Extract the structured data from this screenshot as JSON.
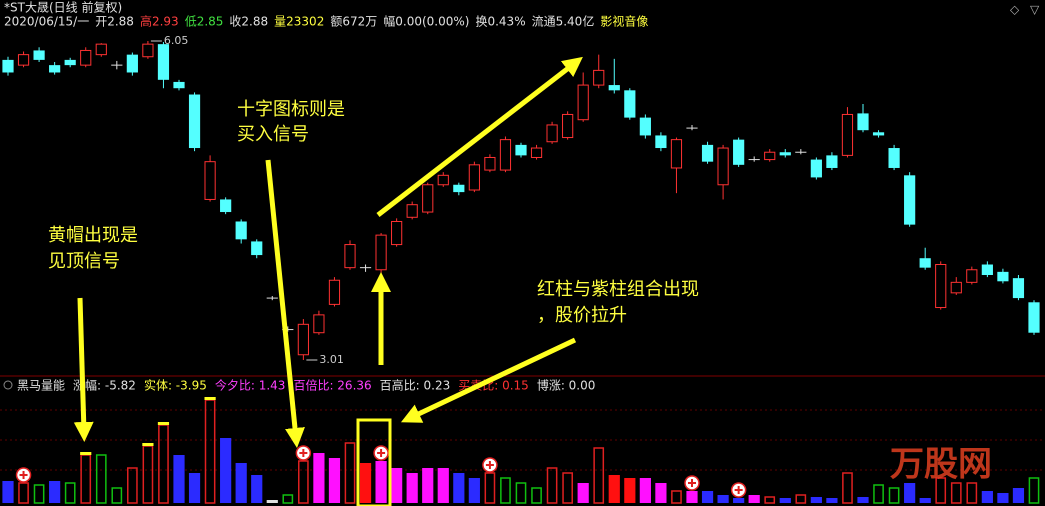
{
  "chart_data": {
    "type": "candlestick",
    "title": "*ST大晟(日线 前复权)",
    "header": [
      {
        "text": "2020/06/15/一",
        "color": "#e0e0e0"
      },
      {
        "text": "开2.88",
        "color": "#e0e0e0"
      },
      {
        "text": "高2.93",
        "color": "#ff4040"
      },
      {
        "text": "低2.85",
        "color": "#40e040"
      },
      {
        "text": "收2.88",
        "color": "#e0e0e0"
      },
      {
        "text": "量23302",
        "color": "#ffff40"
      },
      {
        "text": "额672万",
        "color": "#e0e0e0"
      },
      {
        "text": "幅0.00(0.00%)",
        "color": "#e0e0e0"
      },
      {
        "text": "换0.43%",
        "color": "#e0e0e0"
      },
      {
        "text": "流通5.40亿",
        "color": "#e0e0e0"
      },
      {
        "text": "影视音像",
        "color": "#ffff40"
      }
    ],
    "high_label": 6.05,
    "low_label": 3.01,
    "up_color": "#ff3232",
    "down_color": "#54ffff",
    "flat_color": "#e0e0e0",
    "ohlc": [
      [
        5.87,
        5.75,
        5.9,
        5.72
      ],
      [
        5.82,
        5.92,
        5.95,
        5.8
      ],
      [
        5.96,
        5.87,
        5.99,
        5.85
      ],
      [
        5.82,
        5.75,
        5.85,
        5.73
      ],
      [
        5.87,
        5.82,
        5.89,
        5.8
      ],
      [
        5.82,
        5.96,
        5.99,
        5.8
      ],
      [
        5.92,
        6.02,
        6.03,
        5.9
      ],
      [
        5.82,
        5.82,
        5.86,
        5.78
      ],
      [
        5.92,
        5.75,
        5.94,
        5.72
      ],
      [
        5.9,
        6.02,
        6.05,
        5.88
      ],
      [
        6.02,
        5.68,
        6.04,
        5.6
      ],
      [
        5.66,
        5.6,
        5.68,
        5.58
      ],
      [
        5.54,
        5.03,
        5.56,
        5.0
      ],
      [
        4.54,
        4.9,
        4.96,
        4.52
      ],
      [
        4.54,
        4.42,
        4.56,
        4.4
      ],
      [
        4.33,
        4.16,
        4.35,
        4.12
      ],
      [
        4.14,
        4.01,
        4.16,
        3.98
      ],
      [
        3.6,
        3.6,
        3.62,
        3.58
      ],
      [
        3.3,
        3.3,
        3.33,
        3.28
      ],
      [
        3.06,
        3.35,
        3.4,
        3.01
      ],
      [
        3.27,
        3.44,
        3.48,
        3.25
      ],
      [
        3.54,
        3.77,
        3.8,
        3.52
      ],
      [
        3.89,
        4.11,
        4.15,
        3.87
      ],
      [
        3.89,
        3.89,
        3.92,
        3.85
      ],
      [
        3.87,
        4.2,
        4.22,
        3.82
      ],
      [
        4.11,
        4.33,
        4.36,
        4.09
      ],
      [
        4.37,
        4.49,
        4.52,
        4.35
      ],
      [
        4.42,
        4.68,
        4.7,
        4.4
      ],
      [
        4.68,
        4.77,
        4.8,
        4.66
      ],
      [
        4.68,
        4.61,
        4.7,
        4.58
      ],
      [
        4.63,
        4.87,
        4.9,
        4.61
      ],
      [
        4.82,
        4.94,
        4.97,
        4.8
      ],
      [
        4.82,
        5.11,
        5.14,
        4.8
      ],
      [
        5.06,
        4.96,
        5.08,
        4.94
      ],
      [
        4.94,
        5.03,
        5.06,
        4.92
      ],
      [
        5.09,
        5.25,
        5.28,
        5.07
      ],
      [
        5.13,
        5.35,
        5.38,
        5.11
      ],
      [
        5.3,
        5.63,
        5.75,
        5.28
      ],
      [
        5.63,
        5.77,
        5.92,
        5.6
      ],
      [
        5.63,
        5.58,
        5.88,
        5.55
      ],
      [
        5.58,
        5.32,
        5.6,
        5.3
      ],
      [
        5.32,
        5.15,
        5.35,
        5.12
      ],
      [
        5.15,
        5.03,
        5.18,
        5.0
      ],
      [
        4.84,
        5.11,
        5.13,
        4.6
      ],
      [
        5.22,
        5.22,
        5.25,
        5.2
      ],
      [
        5.06,
        4.9,
        5.09,
        4.88
      ],
      [
        4.68,
        5.03,
        5.06,
        4.54
      ],
      [
        5.11,
        4.87,
        5.13,
        4.85
      ],
      [
        4.92,
        4.92,
        4.95,
        4.9
      ],
      [
        4.92,
        4.99,
        5.02,
        4.9
      ],
      [
        4.99,
        4.96,
        5.02,
        4.94
      ],
      [
        4.99,
        4.99,
        5.02,
        4.97
      ],
      [
        4.92,
        4.75,
        4.94,
        4.73
      ],
      [
        4.96,
        4.84,
        4.99,
        4.82
      ],
      [
        4.96,
        5.35,
        5.42,
        4.94
      ],
      [
        5.36,
        5.2,
        5.45,
        5.18
      ],
      [
        5.18,
        5.15,
        5.2,
        5.13
      ],
      [
        5.03,
        4.84,
        5.06,
        4.82
      ],
      [
        4.77,
        4.3,
        4.8,
        4.28
      ],
      [
        3.98,
        3.89,
        4.08,
        3.87
      ],
      [
        3.51,
        3.92,
        3.95,
        3.49
      ],
      [
        3.65,
        3.75,
        3.8,
        3.63
      ],
      [
        3.75,
        3.87,
        3.9,
        3.73
      ],
      [
        3.92,
        3.82,
        3.95,
        3.8
      ],
      [
        3.85,
        3.76,
        3.88,
        3.74
      ],
      [
        3.79,
        3.6,
        3.82,
        3.58
      ],
      [
        3.56,
        3.27,
        3.58,
        3.25
      ]
    ],
    "indicator": {
      "name": "黑马量能",
      "items": [
        {
          "text": "涨幅: -5.82",
          "color": "#e0e0e0"
        },
        {
          "text": "实体: -3.95",
          "color": "#ffff40"
        },
        {
          "text": "今夕比: 1.43",
          "color": "#ff40ff"
        },
        {
          "text": "百倍比: 26.36",
          "color": "#ff40ff"
        },
        {
          "text": "百高比: 0.23",
          "color": "#e0e0e0"
        },
        {
          "text": "买卖比: 0.15",
          "color": "#ff3232"
        },
        {
          "text": "博涨: 0.00",
          "color": "#e0e0e0"
        }
      ],
      "volume": [
        22,
        20,
        18,
        22,
        20,
        48,
        48,
        15,
        35,
        57,
        78,
        48,
        30,
        103,
        65,
        40,
        28,
        3,
        8,
        42,
        50,
        45,
        60,
        40,
        42,
        35,
        30,
        35,
        35,
        30,
        25,
        30,
        25,
        20,
        15,
        35,
        30,
        20,
        55,
        28,
        25,
        25,
        20,
        12,
        12,
        12,
        8,
        5,
        8,
        6,
        5,
        8,
        6,
        5,
        30,
        6,
        18,
        15,
        20,
        5,
        25,
        20,
        20,
        12,
        10,
        15,
        25
      ],
      "volume_style": [
        "b",
        "r",
        "g",
        "b",
        "g",
        "r",
        "g",
        "g",
        "r",
        "r",
        "r",
        "b",
        "b",
        "r",
        "b",
        "b",
        "b",
        "w",
        "g",
        "r",
        "m",
        "m",
        "r",
        "R",
        "m",
        "m",
        "m",
        "m",
        "m",
        "b",
        "b",
        "r",
        "g",
        "g",
        "g",
        "r",
        "r",
        "m",
        "r",
        "R",
        "R",
        "m",
        "m",
        "r",
        "m",
        "b",
        "b",
        "b",
        "m",
        "r",
        "b",
        "r",
        "b",
        "b",
        "r",
        "b",
        "g",
        "g",
        "b",
        "b",
        "r",
        "r",
        "r",
        "b",
        "b",
        "b",
        "g"
      ],
      "styles": {
        "b": {
          "color": "#2b2bff",
          "hollow": false
        },
        "r": {
          "color": "#e02020",
          "hollow": true
        },
        "g": {
          "color": "#10c010",
          "hollow": true
        },
        "m": {
          "color": "#ff10ff",
          "hollow": false
        },
        "R": {
          "color": "#ff1010",
          "hollow": false
        },
        "w": {
          "color": "#e0e0e0",
          "hollow": false
        }
      },
      "buy_signal_bars": [
        1,
        19,
        24,
        31,
        44,
        47
      ],
      "top_signal_bars": [
        5,
        9,
        10,
        13
      ]
    },
    "annotations": [
      [
        "十字图标则是",
        "买入信号"
      ],
      [
        "黄帽出现是",
        "见顶信号"
      ],
      [
        "红柱与紫柱组合出现",
        "，股价拉升"
      ]
    ],
    "watermark": "万股网"
  }
}
